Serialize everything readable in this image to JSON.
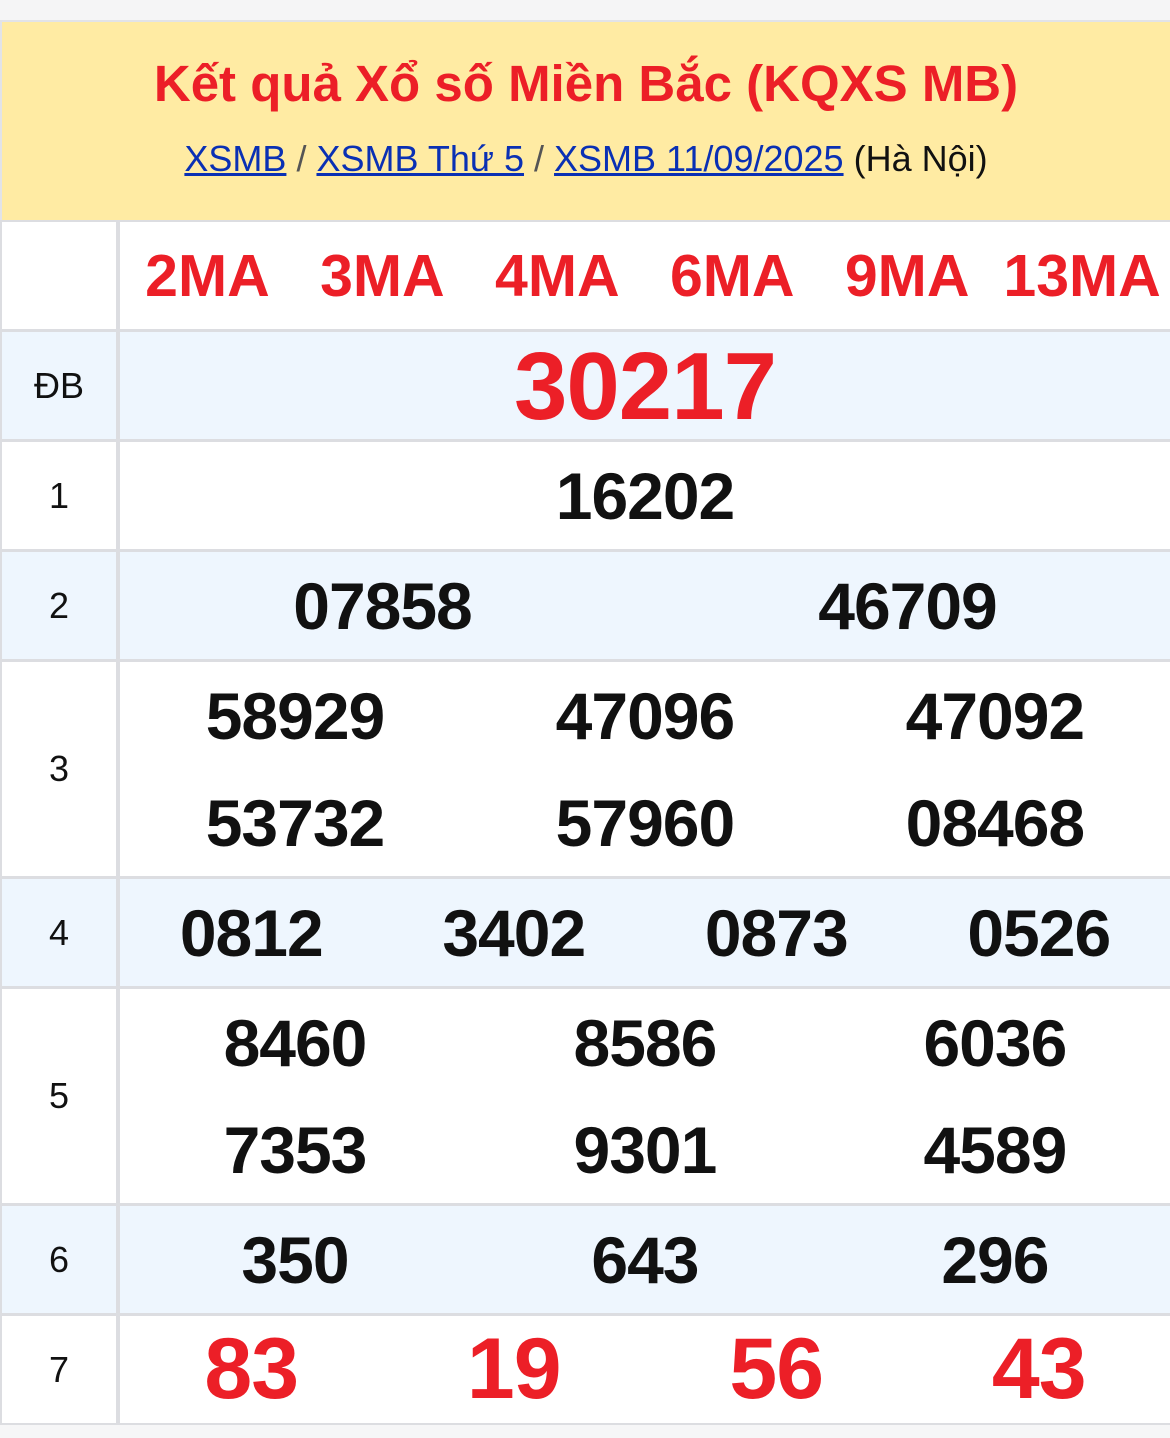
{
  "header": {
    "title": "Kết quả Xổ số Miền Bắc (KQXS MB)",
    "breadcrumb": [
      "XSMB",
      "XSMB Thứ 5",
      "XSMB 11/09/2025"
    ],
    "separator": "/",
    "region": "(Hà Nội)"
  },
  "codes": [
    "2MA",
    "3MA",
    "4MA",
    "6MA",
    "9MA",
    "13MA"
  ],
  "prizes": [
    {
      "label": "ĐB",
      "numbers": [
        "30217"
      ]
    },
    {
      "label": "1",
      "numbers": [
        "16202"
      ]
    },
    {
      "label": "2",
      "numbers": [
        "07858",
        "46709"
      ]
    },
    {
      "label": "3",
      "numbers": [
        "58929",
        "47096",
        "47092",
        "53732",
        "57960",
        "08468"
      ]
    },
    {
      "label": "4",
      "numbers": [
        "0812",
        "3402",
        "0873",
        "0526"
      ]
    },
    {
      "label": "5",
      "numbers": [
        "8460",
        "8586",
        "6036",
        "7353",
        "9301",
        "4589"
      ]
    },
    {
      "label": "6",
      "numbers": [
        "350",
        "643",
        "296"
      ]
    },
    {
      "label": "7",
      "numbers": [
        "83",
        "19",
        "56",
        "43"
      ]
    }
  ],
  "colors": {
    "accent_red": "#ec1f27",
    "link_blue": "#0a30b4",
    "header_bg": "#ffeba3",
    "alt_row_bg": "#eef6fe"
  }
}
